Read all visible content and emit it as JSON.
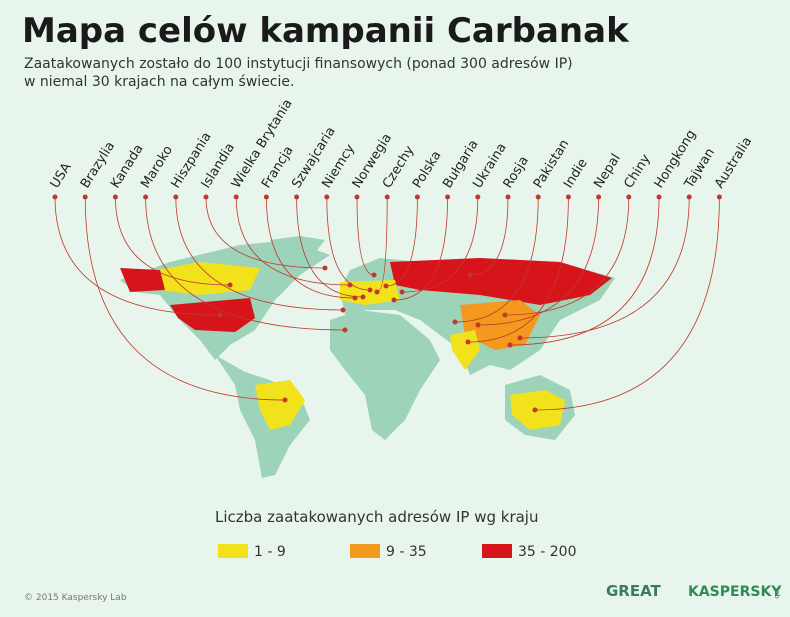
{
  "header": {
    "title": "Mapa celów kampanii Carbanak",
    "subtitle": [
      "Zaatakowanych zostało do 100 instytucji finansowych (ponad 300 adresów IP)",
      "w niemal 30 krajach na całym świecie."
    ]
  },
  "countries": [
    "USA",
    "Brazylia",
    "Kanada",
    "Maroko",
    "Hiszpania",
    "Islandia",
    "Wielka Brytania",
    "Francja",
    "Szwajcaria",
    "Niemcy",
    "Norwegia",
    "Czechy",
    "Polska",
    "Bułgaria",
    "Ukraina",
    "Rosja",
    "Pakistan",
    "Indie",
    "Nepal",
    "Chiny",
    "Hongkong",
    "Tajwan",
    "Australia"
  ],
  "legend": {
    "title": "Liczba zaatakowanych adresów IP wg kraju",
    "items": [
      {
        "label": "1 - 9",
        "color": "#f2e21b"
      },
      {
        "label": "9 - 35",
        "color": "#f39a1e"
      },
      {
        "label": "35 - 200",
        "color": "#d7141a"
      }
    ]
  },
  "footer": {
    "copyright": "© 2015 Kaspersky Lab",
    "great": "GREAT",
    "kaspersky": "KASPERSKY",
    "lab": "lab"
  }
}
